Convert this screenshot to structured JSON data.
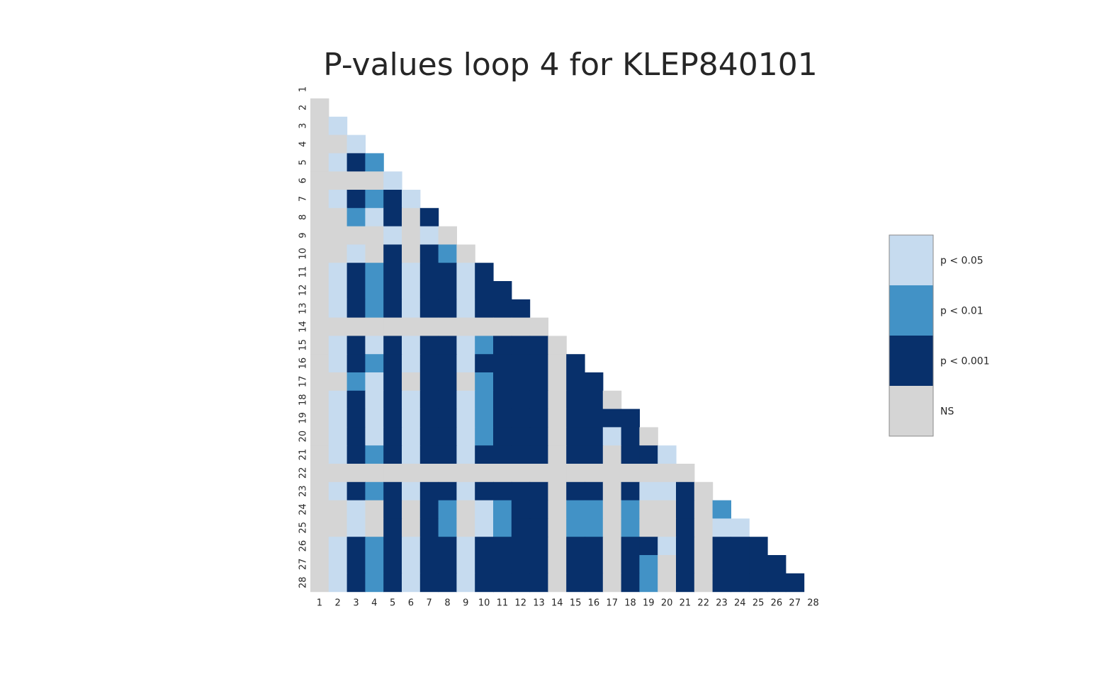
{
  "chart_data": {
    "type": "heatmap",
    "title": "P-values loop 4 for KLEP840101",
    "x_ticks": [
      "1",
      "2",
      "3",
      "4",
      "5",
      "6",
      "7",
      "8",
      "9",
      "10",
      "11",
      "12",
      "13",
      "14",
      "15",
      "16",
      "17",
      "18",
      "19",
      "20",
      "21",
      "22",
      "23",
      "24",
      "25",
      "26",
      "27",
      "28"
    ],
    "y_ticks": [
      "1",
      "2",
      "3",
      "4",
      "5",
      "6",
      "7",
      "8",
      "9",
      "10",
      "11",
      "12",
      "13",
      "14",
      "15",
      "16",
      "17",
      "18",
      "19",
      "20",
      "21",
      "22",
      "23",
      "24",
      "25",
      "26",
      "27",
      "28"
    ],
    "mask": "lower-triangle",
    "levels": [
      {
        "code": 0,
        "label": "NS",
        "color": "#d5d5d5"
      },
      {
        "code": 1,
        "label": "p < 0.05",
        "color": "#c6dbef"
      },
      {
        "code": 2,
        "label": "p < 0.01",
        "color": "#4292c6"
      },
      {
        "code": 3,
        "label": "p < 0.001",
        "color": "#08306b"
      }
    ],
    "legend_order": [
      "p < 0.05",
      "p < 0.01",
      "p < 0.001",
      "NS"
    ],
    "legend_position": "right",
    "grid": false,
    "rows": [
      [],
      [
        0
      ],
      [
        0,
        1
      ],
      [
        0,
        0,
        1
      ],
      [
        0,
        1,
        3,
        2
      ],
      [
        0,
        0,
        0,
        0,
        1
      ],
      [
        0,
        1,
        3,
        2,
        3,
        1
      ],
      [
        0,
        0,
        2,
        1,
        3,
        0,
        3
      ],
      [
        0,
        0,
        0,
        0,
        1,
        0,
        1,
        0
      ],
      [
        0,
        0,
        1,
        0,
        3,
        0,
        3,
        2,
        0
      ],
      [
        0,
        1,
        3,
        2,
        3,
        1,
        3,
        3,
        1,
        3
      ],
      [
        0,
        1,
        3,
        2,
        3,
        1,
        3,
        3,
        1,
        3,
        3
      ],
      [
        0,
        1,
        3,
        2,
        3,
        1,
        3,
        3,
        1,
        3,
        3,
        3
      ],
      [
        0,
        0,
        0,
        0,
        0,
        0,
        0,
        0,
        0,
        0,
        0,
        0,
        0
      ],
      [
        0,
        1,
        3,
        1,
        3,
        1,
        3,
        3,
        1,
        2,
        3,
        3,
        3,
        0
      ],
      [
        0,
        1,
        3,
        2,
        3,
        1,
        3,
        3,
        1,
        3,
        3,
        3,
        3,
        0,
        3
      ],
      [
        0,
        0,
        2,
        1,
        3,
        0,
        3,
        3,
        0,
        2,
        3,
        3,
        3,
        0,
        3,
        3
      ],
      [
        0,
        1,
        3,
        1,
        3,
        1,
        3,
        3,
        1,
        2,
        3,
        3,
        3,
        0,
        3,
        3,
        0
      ],
      [
        0,
        1,
        3,
        1,
        3,
        1,
        3,
        3,
        1,
        2,
        3,
        3,
        3,
        0,
        3,
        3,
        3,
        3
      ],
      [
        0,
        1,
        3,
        1,
        3,
        1,
        3,
        3,
        1,
        2,
        3,
        3,
        3,
        0,
        3,
        3,
        1,
        3,
        0
      ],
      [
        0,
        1,
        3,
        2,
        3,
        1,
        3,
        3,
        1,
        3,
        3,
        3,
        3,
        0,
        3,
        3,
        0,
        3,
        3,
        1
      ],
      [
        0,
        0,
        0,
        0,
        0,
        0,
        0,
        0,
        0,
        0,
        0,
        0,
        0,
        0,
        0,
        0,
        0,
        0,
        0,
        0,
        0
      ],
      [
        0,
        1,
        3,
        2,
        3,
        1,
        3,
        3,
        1,
        3,
        3,
        3,
        3,
        0,
        3,
        3,
        0,
        3,
        1,
        1,
        3,
        0
      ],
      [
        0,
        0,
        1,
        0,
        3,
        0,
        3,
        2,
        0,
        1,
        2,
        3,
        3,
        0,
        2,
        2,
        0,
        2,
        0,
        0,
        3,
        0,
        2
      ],
      [
        0,
        0,
        1,
        0,
        3,
        0,
        3,
        2,
        0,
        1,
        2,
        3,
        3,
        0,
        2,
        2,
        0,
        2,
        0,
        0,
        3,
        0,
        1,
        1
      ],
      [
        0,
        1,
        3,
        2,
        3,
        1,
        3,
        3,
        1,
        3,
        3,
        3,
        3,
        0,
        3,
        3,
        0,
        3,
        3,
        1,
        3,
        0,
        3,
        3,
        3
      ],
      [
        0,
        1,
        3,
        2,
        3,
        1,
        3,
        3,
        1,
        3,
        3,
        3,
        3,
        0,
        3,
        3,
        0,
        3,
        2,
        0,
        3,
        0,
        3,
        3,
        3,
        3
      ],
      [
        0,
        1,
        3,
        2,
        3,
        1,
        3,
        3,
        1,
        3,
        3,
        3,
        3,
        0,
        3,
        3,
        0,
        3,
        2,
        0,
        3,
        0,
        3,
        3,
        3,
        3,
        3
      ]
    ]
  }
}
